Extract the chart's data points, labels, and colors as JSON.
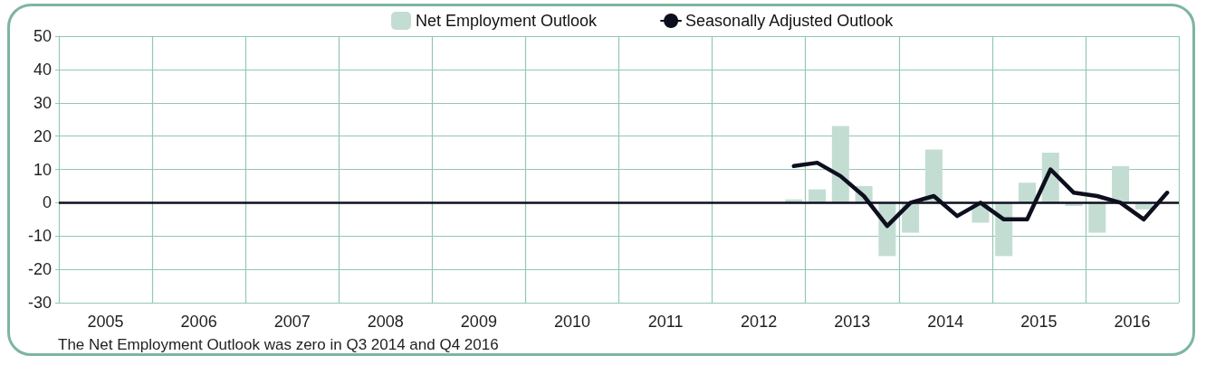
{
  "chart_data": {
    "type": "bar",
    "legend": "top",
    "grid": true,
    "marker": "none",
    "line_style": "solid",
    "x": [
      2012.875,
      2013.125,
      2013.375,
      2013.625,
      2013.875,
      2014.125,
      2014.375,
      2014.625,
      2014.875,
      2015.125,
      2015.375,
      2015.625,
      2015.875,
      2016.125,
      2016.375,
      2016.625,
      2016.875
    ],
    "series": [
      {
        "name": "Net Employment Outlook",
        "color": "#c3ddd3",
        "values": [
          1,
          4,
          23,
          5,
          -16,
          -9,
          16,
          0,
          -6,
          -16,
          6,
          15,
          -1,
          -9,
          11,
          -2,
          0
        ]
      },
      {
        "name": "Seasonally Adjusted Outlook",
        "type": "line",
        "color": "#0d0f1e",
        "values": [
          11,
          12,
          8,
          2,
          -7,
          0,
          2,
          -4,
          0,
          -5,
          -5,
          10,
          3,
          2,
          0,
          -5,
          3
        ]
      }
    ],
    "xlim": [
      2005,
      2017
    ],
    "xticks": [
      {
        "value": 2005,
        "label": null
      },
      {
        "value": 2005.5,
        "label": "2005"
      },
      {
        "value": 2006,
        "label": null
      },
      {
        "value": 2006.5,
        "label": "2006"
      },
      {
        "value": 2007,
        "label": null
      },
      {
        "value": 2007.5,
        "label": "2007"
      },
      {
        "value": 2008,
        "label": null
      },
      {
        "value": 2008.5,
        "label": "2008"
      },
      {
        "value": 2009,
        "label": null
      },
      {
        "value": 2009.5,
        "label": "2009"
      },
      {
        "value": 2010,
        "label": null
      },
      {
        "value": 2010.5,
        "label": "2010"
      },
      {
        "value": 2011,
        "label": null
      },
      {
        "value": 2011.5,
        "label": "2011"
      },
      {
        "value": 2012,
        "label": null
      },
      {
        "value": 2012.5,
        "label": "2012"
      },
      {
        "value": 2013,
        "label": null
      },
      {
        "value": 2013.5,
        "label": "2013"
      },
      {
        "value": 2014,
        "label": null
      },
      {
        "value": 2014.5,
        "label": "2014"
      },
      {
        "value": 2015,
        "label": null
      },
      {
        "value": 2015.5,
        "label": "2015"
      },
      {
        "value": 2016,
        "label": null
      },
      {
        "value": 2016.5,
        "label": "2016"
      },
      {
        "value": 2017,
        "label": null
      }
    ],
    "ylim": [
      -30,
      50
    ],
    "yticks": [
      -30,
      -20,
      -10,
      0,
      10,
      20,
      30,
      40,
      50
    ],
    "annotations": [
      "The Net Employment Outlook was zero in Q3 2014 and Q4 2016"
    ]
  }
}
